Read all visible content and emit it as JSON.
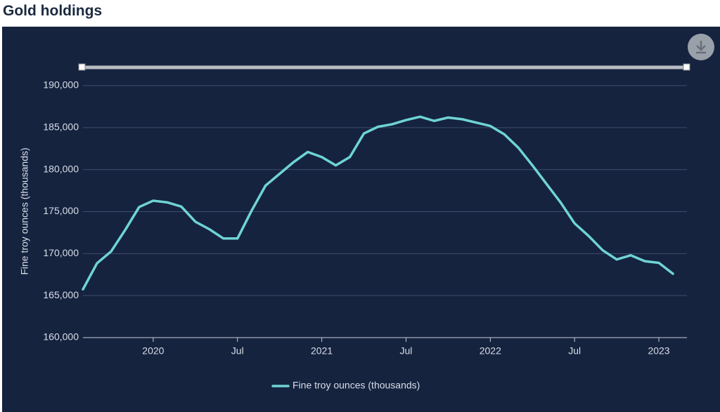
{
  "chart_data": {
    "type": "line",
    "title": "Gold holdings",
    "y_label": "Fine troy ounces (thousands)",
    "x": [
      "2019-08",
      "2019-09",
      "2019-10",
      "2019-11",
      "2019-12",
      "2020-01",
      "2020-02",
      "2020-03",
      "2020-04",
      "2020-05",
      "2020-06",
      "2020-07",
      "2020-08",
      "2020-09",
      "2020-10",
      "2020-11",
      "2020-12",
      "2021-01",
      "2021-02",
      "2021-03",
      "2021-04",
      "2021-05",
      "2021-06",
      "2021-07",
      "2021-08",
      "2021-09",
      "2021-10",
      "2021-11",
      "2021-12",
      "2022-01",
      "2022-02",
      "2022-03",
      "2022-04",
      "2022-05",
      "2022-06",
      "2022-07",
      "2022-08",
      "2022-09",
      "2022-10",
      "2022-11",
      "2022-12",
      "2023-01",
      "2023-02"
    ],
    "series": [
      {
        "name": "Fine troy ounces (thousands)",
        "color": "#6fd4d4",
        "values": [
          165750,
          168850,
          170250,
          172800,
          175550,
          176300,
          176100,
          175600,
          173800,
          172900,
          171800,
          171800,
          175100,
          178100,
          179500,
          180900,
          182100,
          181500,
          180500,
          181500,
          184300,
          185100,
          185400,
          185900,
          186300,
          185800,
          186200,
          186000,
          185600,
          185200,
          184200,
          182600,
          180500,
          178300,
          176100,
          173600,
          172100,
          170400,
          169300,
          169800,
          169100,
          168900,
          167600
        ]
      }
    ],
    "xlim": [
      "2019-08",
      "2023-03"
    ],
    "xticks": [
      {
        "value": "2020-01",
        "label": "2020"
      },
      {
        "value": "2020-07",
        "label": "Jul"
      },
      {
        "value": "2021-01",
        "label": "2021"
      },
      {
        "value": "2021-07",
        "label": "Jul"
      },
      {
        "value": "2022-01",
        "label": "2022"
      },
      {
        "value": "2022-07",
        "label": "Jul"
      },
      {
        "value": "2023-01",
        "label": "2023"
      }
    ],
    "ylim": [
      160000,
      190000
    ],
    "yticks": [
      {
        "value": 160000,
        "label": "160,000"
      },
      {
        "value": 165000,
        "label": "165,000"
      },
      {
        "value": 170000,
        "label": "170,000"
      },
      {
        "value": 175000,
        "label": "175,000"
      },
      {
        "value": 180000,
        "label": "180,000"
      },
      {
        "value": 185000,
        "label": "185,000"
      },
      {
        "value": 190000,
        "label": "190,000"
      }
    ],
    "grid": true,
    "legend": "bottom"
  }
}
